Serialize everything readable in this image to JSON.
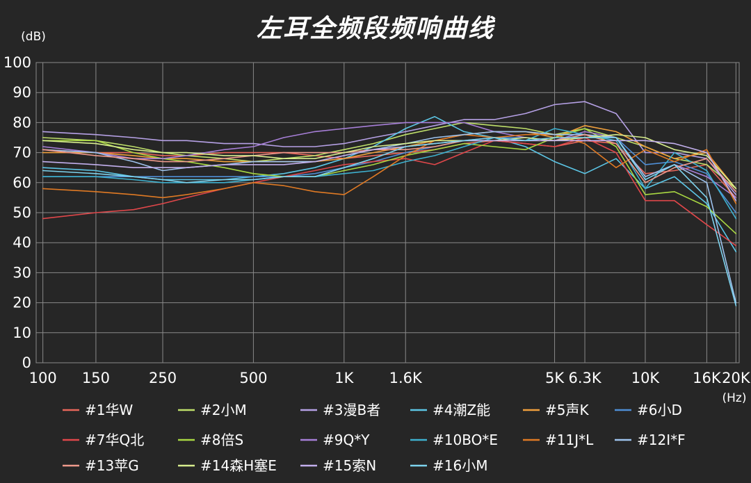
{
  "chart_data": {
    "type": "line",
    "title": "左耳全频段频响曲线",
    "ylabel": "(dB)",
    "xlabel": "(Hz)",
    "x_scale": "log",
    "xlim": [
      95,
      20500
    ],
    "ylim": [
      0,
      100
    ],
    "grid": true,
    "legend_position": "bottom",
    "x_ticks": [
      {
        "v": 100,
        "label": "100"
      },
      {
        "v": 150,
        "label": "150"
      },
      {
        "v": 250,
        "label": "250"
      },
      {
        "v": 500,
        "label": "500"
      },
      {
        "v": 1000,
        "label": "1K"
      },
      {
        "v": 1600,
        "label": "1.6K"
      },
      {
        "v": 5000,
        "label": "5K"
      },
      {
        "v": 6300,
        "label": "6.3K"
      },
      {
        "v": 10000,
        "label": "10K"
      },
      {
        "v": 16000,
        "label": "16K"
      },
      {
        "v": 20000,
        "label": "20K"
      }
    ],
    "y_ticks": [
      0,
      10,
      20,
      30,
      40,
      50,
      60,
      70,
      80,
      90,
      100
    ],
    "x": [
      100,
      150,
      200,
      250,
      300,
      400,
      500,
      630,
      800,
      1000,
      1250,
      1600,
      2000,
      2500,
      3150,
      4000,
      5000,
      6300,
      8000,
      10000,
      12500,
      16000,
      20000
    ],
    "series": [
      {
        "name": "#1华W",
        "color": "#e8665a",
        "values": [
          71,
          70,
          70,
          69,
          69,
          70,
          70,
          70,
          69,
          68,
          69,
          70,
          71,
          73,
          74,
          73,
          72,
          74,
          73,
          63,
          64,
          66,
          55
        ]
      },
      {
        "name": "#2小M",
        "color": "#bfe06a",
        "values": [
          75,
          74,
          72,
          70,
          69,
          68,
          67,
          68,
          69,
          71,
          73,
          76,
          78,
          80,
          79,
          78,
          76,
          78,
          75,
          72,
          68,
          66,
          58
        ]
      },
      {
        "name": "#3漫B者",
        "color": "#b6a1e6",
        "values": [
          77,
          76,
          75,
          74,
          74,
          73,
          73,
          72,
          72,
          73,
          75,
          77,
          79,
          81,
          81,
          83,
          86,
          87,
          83,
          70,
          70,
          68,
          56
        ]
      },
      {
        "name": "#4潮Z能",
        "color": "#5cc6e6",
        "values": [
          65,
          64,
          62,
          61,
          61,
          61,
          62,
          63,
          65,
          68,
          72,
          78,
          82,
          77,
          75,
          72,
          67,
          63,
          68,
          58,
          62,
          53,
          37
        ]
      },
      {
        "name": "#5声K",
        "color": "#f0a03c",
        "values": [
          70,
          70,
          69,
          68,
          68,
          67,
          67,
          67,
          67,
          68,
          70,
          72,
          74,
          76,
          77,
          77,
          75,
          79,
          77,
          72,
          68,
          70,
          58
        ]
      },
      {
        "name": "#6小D",
        "color": "#4f8fd6",
        "values": [
          62,
          62,
          62,
          62,
          62,
          62,
          62,
          62,
          63,
          65,
          67,
          70,
          72,
          74,
          75,
          75,
          74,
          75,
          75,
          66,
          67,
          63,
          50
        ]
      },
      {
        "name": "#7华Q北",
        "color": "#e0474a",
        "values": [
          48,
          50,
          51,
          53,
          55,
          58,
          60,
          62,
          64,
          66,
          67,
          68,
          66,
          70,
          74,
          73,
          72,
          75,
          70,
          54,
          54,
          46,
          39
        ]
      },
      {
        "name": "#8倍S",
        "color": "#a9d842",
        "values": [
          74,
          74,
          70,
          68,
          67,
          65,
          63,
          62,
          62,
          64,
          66,
          69,
          71,
          73,
          72,
          71,
          75,
          78,
          72,
          56,
          57,
          52,
          43
        ]
      },
      {
        "name": "#9Q*Y",
        "color": "#a77fd8",
        "values": [
          72,
          70,
          68,
          68,
          69,
          71,
          72,
          75,
          77,
          78,
          79,
          80,
          80,
          80,
          77,
          75,
          74,
          77,
          75,
          62,
          66,
          62,
          55
        ]
      },
      {
        "name": "#10BO*E",
        "color": "#3eb1cf",
        "values": [
          62,
          62,
          61,
          60,
          60,
          60,
          61,
          62,
          62,
          63,
          64,
          67,
          69,
          72,
          75,
          74,
          78,
          76,
          74,
          58,
          70,
          64,
          48
        ]
      },
      {
        "name": "#11J*L",
        "color": "#e07a24",
        "values": [
          58,
          57,
          56,
          55,
          56,
          58,
          60,
          59,
          57,
          56,
          62,
          69,
          74,
          76,
          75,
          76,
          76,
          73,
          65,
          71,
          67,
          71,
          53
        ]
      },
      {
        "name": "#12I*F",
        "color": "#9ec3ee",
        "values": [
          71,
          70,
          67,
          64,
          65,
          66,
          67,
          67,
          67,
          69,
          71,
          73,
          75,
          76,
          77,
          77,
          76,
          76,
          75,
          62,
          66,
          60,
          20
        ]
      },
      {
        "name": "#13苹G",
        "color": "#f09a8c",
        "values": [
          71,
          69,
          68,
          67,
          67,
          68,
          69,
          70,
          70,
          70,
          71,
          71,
          72,
          74,
          74,
          74,
          74,
          76,
          73,
          60,
          65,
          68,
          57
        ]
      },
      {
        "name": "#14森H塞E",
        "color": "#d8ee8e",
        "values": [
          74,
          73,
          71,
          70,
          70,
          69,
          69,
          68,
          68,
          70,
          72,
          73,
          74,
          74,
          74,
          75,
          74,
          75,
          76,
          75,
          71,
          69,
          58
        ]
      },
      {
        "name": "#15索N",
        "color": "#c3b0ee",
        "values": [
          67,
          66,
          65,
          65,
          65,
          66,
          66,
          66,
          67,
          69,
          71,
          72,
          73,
          74,
          74,
          74,
          74,
          74,
          74,
          74,
          73,
          70,
          54
        ]
      },
      {
        "name": "#16小M",
        "color": "#7ed3ee",
        "values": [
          64,
          63,
          62,
          61,
          60,
          61,
          61,
          62,
          62,
          65,
          68,
          72,
          73,
          74,
          75,
          74,
          75,
          75,
          75,
          61,
          66,
          55,
          19
        ]
      }
    ]
  }
}
